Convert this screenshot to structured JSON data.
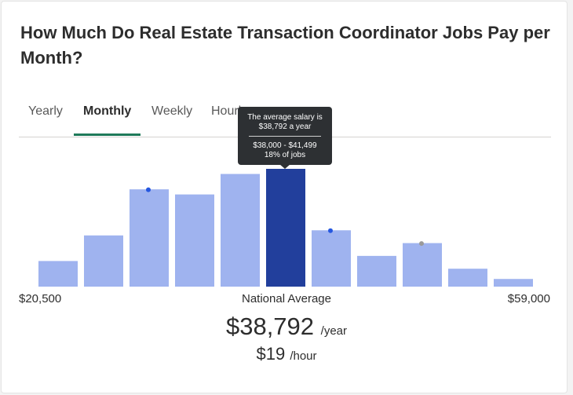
{
  "title": "How Much Do Real Estate Transaction Coordinator Jobs Pay per Month?",
  "tabs": [
    {
      "label": "Yearly"
    },
    {
      "label": "Monthly"
    },
    {
      "label": "Weekly"
    },
    {
      "label": "Hourly"
    }
  ],
  "active_tab": "Monthly",
  "chart_data": {
    "type": "bar",
    "x_min_label": "$20,500",
    "x_max_label": "$59,000",
    "center_label": "National Average",
    "values": [
      5,
      10,
      19,
      18,
      22,
      23,
      11,
      6,
      8.5,
      3.5,
      1.5
    ],
    "highlight_index": 5,
    "markers": [
      {
        "bar": 2,
        "color": "#2557e0"
      },
      {
        "bar": 6,
        "color": "#2557e0"
      },
      {
        "bar": 8,
        "color": "#9a9a9a"
      }
    ],
    "bar_color": "#9fb3ef",
    "highlight_color": "#223f9c",
    "ylim": [
      0,
      23
    ]
  },
  "tooltip": {
    "line1": "The average salary is",
    "line2": "$38,792 a year",
    "line3": "$38,000 - $41,499",
    "line4": "18% of jobs"
  },
  "salary": {
    "yearly_value": "$38,792",
    "yearly_unit": "/year",
    "hourly_value": "$19",
    "hourly_unit": "/hour"
  }
}
